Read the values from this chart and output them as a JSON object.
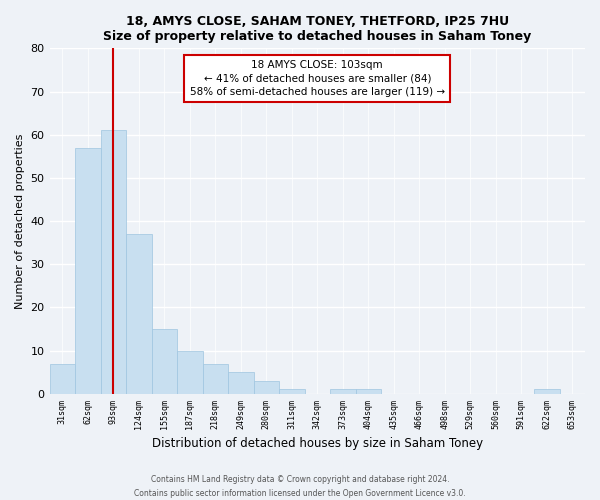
{
  "title": "18, AMYS CLOSE, SAHAM TONEY, THETFORD, IP25 7HU",
  "subtitle": "Size of property relative to detached houses in Saham Toney",
  "xlabel": "Distribution of detached houses by size in Saham Toney",
  "ylabel": "Number of detached properties",
  "bar_labels": [
    "31sqm",
    "62sqm",
    "93sqm",
    "124sqm",
    "155sqm",
    "187sqm",
    "218sqm",
    "249sqm",
    "280sqm",
    "311sqm",
    "342sqm",
    "373sqm",
    "404sqm",
    "435sqm",
    "466sqm",
    "498sqm",
    "529sqm",
    "560sqm",
    "591sqm",
    "622sqm",
    "653sqm"
  ],
  "bar_values": [
    7,
    57,
    61,
    37,
    15,
    10,
    7,
    5,
    3,
    1,
    0,
    1,
    1,
    0,
    0,
    0,
    0,
    0,
    0,
    1,
    0
  ],
  "bar_color": "#c8dff0",
  "bar_edge_color": "#9fc5e0",
  "vline_x": 2,
  "vline_color": "#cc0000",
  "annotation_title": "18 AMYS CLOSE: 103sqm",
  "annotation_line1": "← 41% of detached houses are smaller (84)",
  "annotation_line2": "58% of semi-detached houses are larger (119) →",
  "ylim": [
    0,
    80
  ],
  "yticks": [
    0,
    10,
    20,
    30,
    40,
    50,
    60,
    70,
    80
  ],
  "footer1": "Contains HM Land Registry data © Crown copyright and database right 2024.",
  "footer2": "Contains public sector information licensed under the Open Government Licence v3.0.",
  "bg_color": "#eef2f7",
  "grid_color": "white"
}
